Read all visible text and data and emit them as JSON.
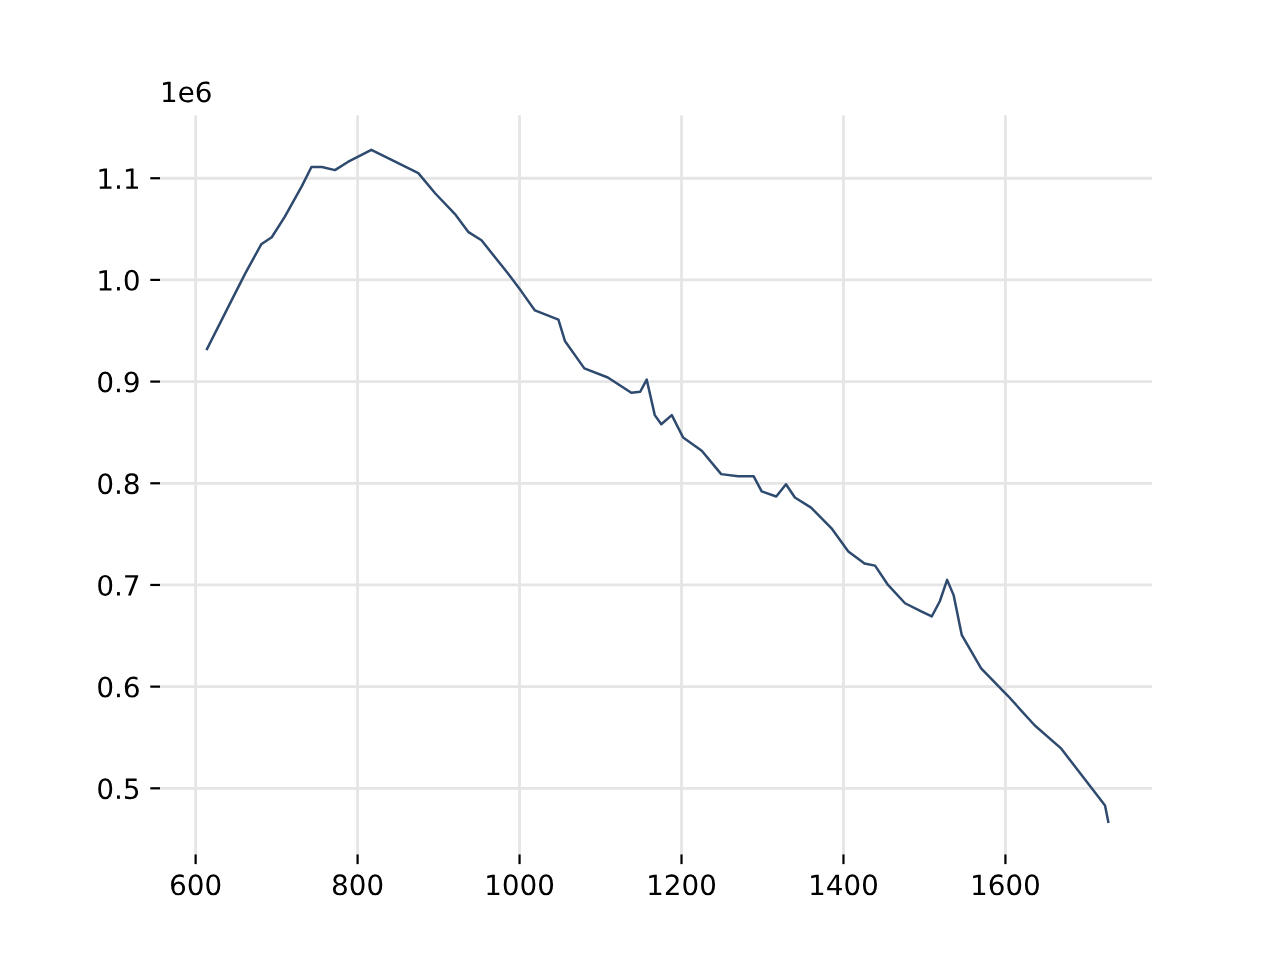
{
  "chart_data": {
    "type": "line",
    "x": [
      614,
      640,
      661,
      681,
      694,
      710,
      731,
      743,
      756,
      772,
      788,
      817,
      842,
      875,
      896,
      920,
      937,
      953,
      986,
      1002,
      1019,
      1048,
      1056,
      1080,
      1109,
      1138,
      1149,
      1157,
      1167,
      1175,
      1188,
      1202,
      1225,
      1249,
      1270,
      1289,
      1299,
      1317,
      1329,
      1340,
      1360,
      1385,
      1406,
      1426,
      1439,
      1455,
      1476,
      1496,
      1509,
      1519,
      1528,
      1536,
      1546,
      1570,
      1603,
      1636,
      1669,
      1694,
      1723,
      1727
    ],
    "series": [
      {
        "color": "#2e4a6e",
        "values": [
          0.932,
          0.973,
          1.006,
          1.035,
          1.042,
          1.062,
          1.092,
          1.111,
          1.111,
          1.108,
          1.116,
          1.128,
          1.118,
          1.105,
          1.085,
          1.065,
          1.047,
          1.039,
          1.006,
          0.989,
          0.97,
          0.961,
          0.94,
          0.913,
          0.904,
          0.889,
          0.89,
          0.902,
          0.867,
          0.858,
          0.867,
          0.845,
          0.832,
          0.809,
          0.807,
          0.807,
          0.792,
          0.787,
          0.799,
          0.786,
          0.776,
          0.756,
          0.733,
          0.721,
          0.719,
          0.7,
          0.682,
          0.674,
          0.669,
          0.684,
          0.705,
          0.69,
          0.651,
          0.618,
          0.591,
          0.562,
          0.539,
          0.513,
          0.483,
          0.467
        ]
      }
    ],
    "xlim": [
      556,
      1781
    ],
    "ylim": [
      0.435,
      1.162
    ],
    "xticks": [
      600,
      800,
      1000,
      1200,
      1400,
      1600
    ],
    "yticks": [
      0.5,
      0.6,
      0.7,
      0.8,
      0.9,
      {
        "value": 1,
        "label": "1.0"
      },
      1.1
    ],
    "annotations": [
      "1e6"
    ],
    "grid": true,
    "marker": "none",
    "line_style": "solid"
  }
}
